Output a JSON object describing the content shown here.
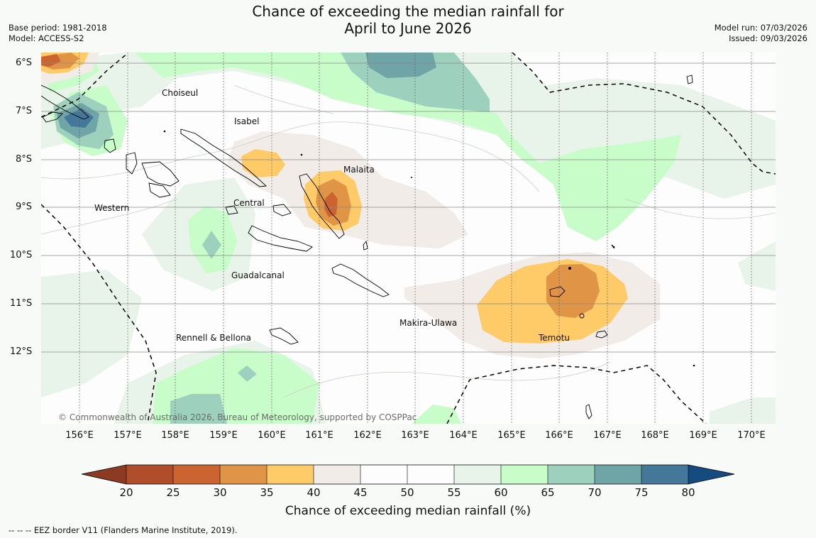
{
  "title": {
    "line1": "Chance of exceeding the median rainfall for",
    "line2": "April to June 2026"
  },
  "meta": {
    "base_period": "Base period: 1981-2018",
    "model": "Model: ACCESS-S2",
    "model_run": "Model run: 07/03/2026",
    "issued": "Issued: 09/03/2026"
  },
  "map": {
    "lat_labels": [
      "6°S",
      "7°S",
      "8°S",
      "9°S",
      "10°S",
      "11°S",
      "12°S"
    ],
    "lon_labels": [
      "156°E",
      "157°E",
      "158°E",
      "159°E",
      "160°E",
      "161°E",
      "162°E",
      "163°E",
      "164°E",
      "165°E",
      "166°E",
      "167°E",
      "168°E",
      "169°E",
      "170°E"
    ],
    "regions": [
      {
        "id": "choiseul",
        "name": "Choiseul"
      },
      {
        "id": "isabel",
        "name": "Isabel"
      },
      {
        "id": "malaita",
        "name": "Malaita"
      },
      {
        "id": "central",
        "name": "Central"
      },
      {
        "id": "western",
        "name": "Western"
      },
      {
        "id": "guadalcanal",
        "name": "Guadalcanal"
      },
      {
        "id": "makira",
        "name": "Makira-Ulawa"
      },
      {
        "id": "rennell",
        "name": "Rennell & Bellona"
      },
      {
        "id": "temotu",
        "name": "Temotu"
      }
    ],
    "copyright": "© Commonwealth of Australia 2026, Bureau of Meteorology, supported by COSPPac"
  },
  "colorbar": {
    "ticks": [
      "20",
      "25",
      "30",
      "35",
      "40",
      "45",
      "50",
      "55",
      "60",
      "65",
      "70",
      "75",
      "80"
    ],
    "colors": [
      "#b04d2a",
      "#cc6432",
      "#e09546",
      "#fecb68",
      "#f1ece8",
      "#fcfdfc",
      "#fcfdfc",
      "#e8f4e9",
      "#c8fdc9",
      "#9ed1bd",
      "#6fa5a6",
      "#43789a"
    ],
    "under_color": "#8c3a22",
    "over_color": "#164b7f",
    "label": "Chance of exceeding median rainfall (%)"
  },
  "footnote": "--  --  -- EEZ border V11 (Flanders Marine Institute, 2019)."
}
